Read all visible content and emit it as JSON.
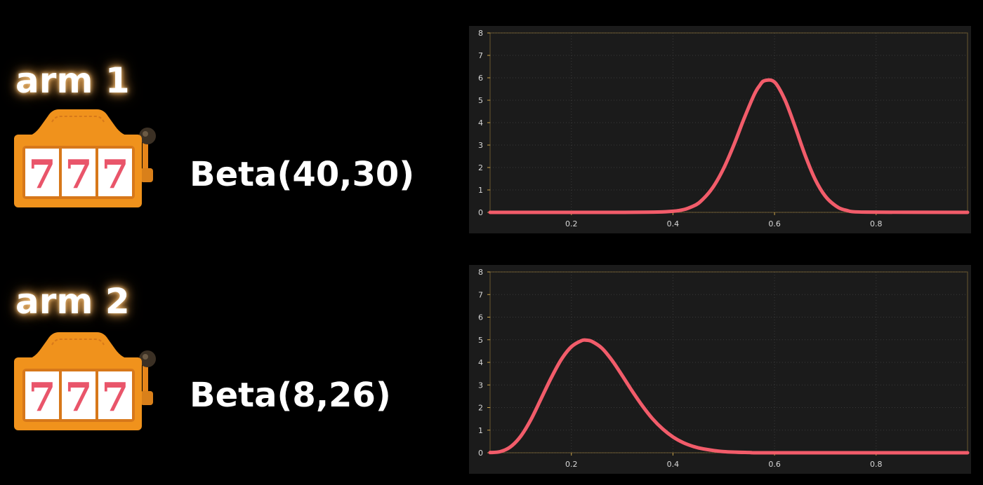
{
  "arms": [
    {
      "label": "arm 1",
      "distribution": "Beta(40,30)",
      "icon": "slot-machine-icon"
    },
    {
      "label": "arm 2",
      "distribution": "Beta(8,26)",
      "icon": "slot-machine-icon"
    }
  ],
  "slot_reels": [
    "7",
    "7",
    "7"
  ],
  "colors": {
    "background": "#000000",
    "slot_body": "#f0921c",
    "slot_reel_digit": "#e9556a",
    "curve": "#f25c6a",
    "chart_bg": "#1b1b1b",
    "axis": "#c8a24a"
  },
  "chart_data": [
    {
      "type": "line",
      "title": "",
      "xlabel": "",
      "ylabel": "",
      "xlim": [
        0.04,
        0.98
      ],
      "ylim": [
        0,
        8
      ],
      "xticks": [
        0.2,
        0.4,
        0.6,
        0.8
      ],
      "yticks": [
        0,
        1,
        2,
        3,
        4,
        5,
        6,
        7,
        8
      ],
      "grid": true,
      "x": [
        0.04,
        0.3,
        0.4,
        0.44,
        0.46,
        0.48,
        0.5,
        0.52,
        0.54,
        0.56,
        0.57,
        0.58,
        0.6,
        0.62,
        0.64,
        0.66,
        0.68,
        0.7,
        0.72,
        0.74,
        0.78,
        0.98
      ],
      "series": [
        {
          "values": [
            0,
            0.001,
            0.05,
            0.28,
            0.61,
            1.16,
            1.97,
            3.01,
            4.18,
            5.25,
            5.63,
            5.87,
            5.81,
            5.04,
            3.85,
            2.56,
            1.47,
            0.72,
            0.3,
            0.1,
            0.01,
            0
          ]
        }
      ]
    },
    {
      "type": "line",
      "title": "",
      "xlabel": "",
      "ylabel": "",
      "xlim": [
        0.04,
        0.98
      ],
      "ylim": [
        0,
        8
      ],
      "xticks": [
        0.2,
        0.4,
        0.6,
        0.8
      ],
      "yticks": [
        0,
        1,
        2,
        3,
        4,
        5,
        6,
        7,
        8
      ],
      "grid": true,
      "x": [
        0.04,
        0.06,
        0.08,
        0.1,
        0.12,
        0.14,
        0.16,
        0.18,
        0.2,
        0.22,
        0.23,
        0.24,
        0.26,
        0.28,
        0.3,
        0.32,
        0.34,
        0.36,
        0.38,
        0.4,
        0.42,
        0.44,
        0.46,
        0.5,
        0.55,
        0.6,
        0.98
      ],
      "series": [
        {
          "values": [
            0.01,
            0.05,
            0.26,
            0.72,
            1.45,
            2.37,
            3.3,
            4.12,
            4.69,
            4.96,
            4.98,
            4.93,
            4.63,
            4.09,
            3.42,
            2.72,
            2.07,
            1.5,
            1.05,
            0.7,
            0.45,
            0.28,
            0.17,
            0.05,
            0.01,
            0,
            0
          ]
        }
      ]
    }
  ]
}
